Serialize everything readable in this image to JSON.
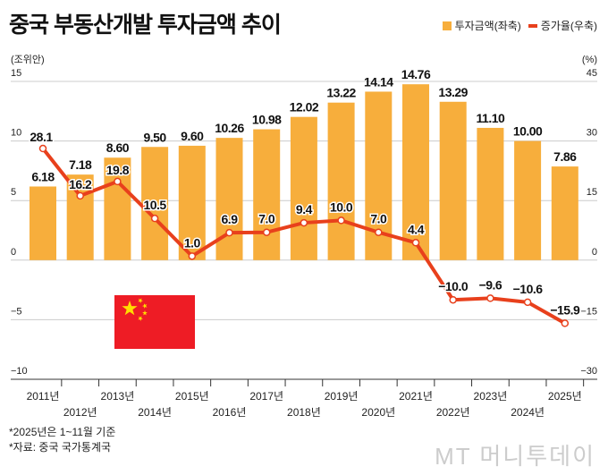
{
  "title": "중국 부동산개발 투자금액 추이",
  "notes": [
    "*2025년은 1~11월 기준",
    "*자료: 중국 국가통계국"
  ],
  "logo": "MT 머니투데이",
  "colors": {
    "bar": "#F7AE3C",
    "line": "#E8401C",
    "flag_red": "#EE1C25",
    "flag_star": "#FFDE00"
  },
  "flag_icon": "china-flag",
  "chart_data": {
    "type": "bar+line",
    "categories": [
      "2011년",
      "2012년",
      "2013년",
      "2014년",
      "2015년",
      "2016년",
      "2017년",
      "2018년",
      "2019년",
      "2020년",
      "2021년",
      "2022년",
      "2023년",
      "2024년",
      "2025년"
    ],
    "series": [
      {
        "name": "투자금액(좌축)",
        "type": "bar",
        "axis": "left",
        "values": [
          6.18,
          7.18,
          8.6,
          9.5,
          9.6,
          10.26,
          10.98,
          12.02,
          13.22,
          14.14,
          14.76,
          13.29,
          11.1,
          10.0,
          7.86
        ],
        "labels": [
          "6.18",
          "7.18",
          "8.60",
          "9.50",
          "9.60",
          "10.26",
          "10.98",
          "12.02",
          "13.22",
          "14.14",
          "14.76",
          "13.29",
          "11.10",
          "10.00",
          "7.86"
        ]
      },
      {
        "name": "증가율(우축)",
        "type": "line",
        "axis": "right",
        "values": [
          28.1,
          16.2,
          19.8,
          10.5,
          1.0,
          6.9,
          7.0,
          9.4,
          10.0,
          7.0,
          4.4,
          -10.0,
          -9.6,
          -10.6,
          -15.9
        ],
        "labels": [
          "28.1",
          "16.2",
          "19.8",
          "10.5",
          "1.0",
          "6.9",
          "7.0",
          "9.4",
          "10.0",
          "7.0",
          "4.4",
          "−10.0",
          "−9.6",
          "−10.6",
          "−15.9"
        ]
      }
    ],
    "left_axis": {
      "unit": "(조위안)",
      "range": [
        -10,
        15
      ],
      "ticks": [
        "15",
        "10",
        "5",
        "0",
        "−5",
        "−10"
      ]
    },
    "right_axis": {
      "unit": "(%)",
      "range": [
        -30,
        45
      ],
      "ticks": [
        "45",
        "30",
        "15",
        "0",
        "−15",
        "−30"
      ]
    },
    "grid": true,
    "legend": "top-right"
  }
}
